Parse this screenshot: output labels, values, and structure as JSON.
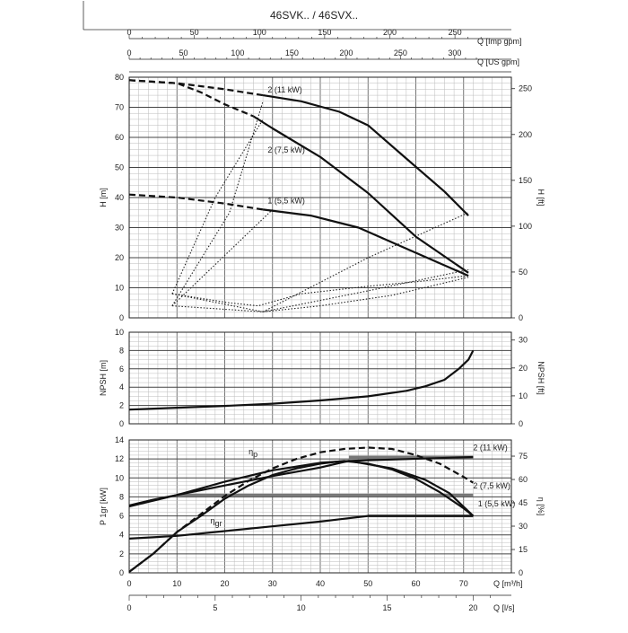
{
  "header": {
    "title": "46SVK.. / 46SVX.."
  },
  "chart_data": [
    {
      "type": "line",
      "name": "head",
      "x_unit": "m3/h",
      "xlim": [
        0,
        80
      ],
      "ylim": [
        0,
        80
      ],
      "ylabel": "H [m]",
      "ylabel_right": "H [ft]",
      "yticks": [
        0,
        10,
        20,
        30,
        40,
        50,
        60,
        70,
        80
      ],
      "yticks_right": [
        0,
        50,
        100,
        150,
        200,
        250
      ],
      "ft_per_m": 3.281,
      "top_axes": [
        {
          "label": "Q [Imp gpm]",
          "ticks": [
            0,
            50,
            100,
            150,
            200,
            250
          ],
          "per_m3h": 3.6662
        },
        {
          "label": "Q [US gpm]",
          "ticks": [
            0,
            50,
            100,
            150,
            200,
            250,
            300
          ],
          "per_m3h": 4.4029
        }
      ],
      "series": [
        {
          "name": "2 (11 kW)",
          "label_at": [
            29,
            75
          ],
          "dashed": [
            [
              0,
              79
            ],
            [
              10,
              78
            ],
            [
              20,
              76
            ],
            [
              28,
              74
            ]
          ],
          "solid": [
            [
              28,
              74
            ],
            [
              36,
              72
            ],
            [
              44,
              68.5
            ],
            [
              50,
              64
            ],
            [
              58,
              53
            ],
            [
              66,
              42
            ],
            [
              71,
              34
            ]
          ]
        },
        {
          "name": "2 (7,5 kW)",
          "label_at": [
            29,
            55
          ],
          "dashed": [
            [
              0,
              79
            ],
            [
              10,
              78
            ],
            [
              15,
              75
            ],
            [
              20,
              71
            ],
            [
              26,
              67
            ]
          ],
          "solid": [
            [
              26,
              67
            ],
            [
              30,
              63
            ],
            [
              40,
              53.5
            ],
            [
              50,
              41.5
            ],
            [
              60,
              27
            ],
            [
              71,
              15
            ]
          ]
        },
        {
          "name": "1 (5,5 kW)",
          "label_at": [
            29,
            38
          ],
          "dashed": [
            [
              0,
              41
            ],
            [
              10,
              40
            ],
            [
              20,
              38
            ],
            [
              28,
              36
            ]
          ],
          "solid": [
            [
              28,
              36
            ],
            [
              38,
              34
            ],
            [
              48,
              30
            ],
            [
              58,
              23
            ],
            [
              71,
              14
            ]
          ]
        }
      ],
      "efficiency_envelope": [
        [
          [
            9,
            8
          ],
          [
            21,
            5
          ],
          [
            27,
            4
          ],
          [
            36,
            8
          ],
          [
            50,
            10.5
          ],
          [
            60,
            12
          ],
          [
            71,
            14
          ]
        ],
        [
          [
            9,
            4
          ],
          [
            28,
            2
          ],
          [
            40,
            4
          ],
          [
            55,
            7.5
          ],
          [
            71,
            13.5
          ]
        ],
        [
          [
            9,
            8
          ],
          [
            28,
            2
          ],
          [
            50,
            9
          ],
          [
            71,
            16
          ]
        ],
        [
          [
            9,
            4
          ],
          [
            21,
            35
          ],
          [
            28,
            72
          ]
        ],
        [
          [
            9,
            8
          ],
          [
            18,
            40
          ],
          [
            28,
            66
          ]
        ],
        [
          [
            9,
            4
          ],
          [
            30,
            36
          ]
        ],
        [
          [
            28,
            2
          ],
          [
            50,
            20
          ],
          [
            71,
            35
          ]
        ]
      ]
    },
    {
      "type": "line",
      "name": "npsh",
      "xlim": [
        0,
        80
      ],
      "ylim": [
        0,
        10
      ],
      "ylabel": "NPSH [m]",
      "ylabel_right": "NPSH [ft]",
      "yticks": [
        0,
        2,
        4,
        6,
        8,
        10
      ],
      "yticks_right": [
        0,
        10,
        20,
        30
      ],
      "series": [
        {
          "name": "NPSH",
          "points": [
            [
              0,
              1.55
            ],
            [
              10,
              1.75
            ],
            [
              20,
              1.95
            ],
            [
              30,
              2.2
            ],
            [
              40,
              2.55
            ],
            [
              50,
              3.0
            ],
            [
              58,
              3.6
            ],
            [
              62,
              4.1
            ],
            [
              66,
              4.8
            ],
            [
              69,
              6.0
            ],
            [
              71,
              7.0
            ],
            [
              72,
              8.0
            ]
          ]
        }
      ]
    },
    {
      "type": "line",
      "name": "power",
      "xlim": [
        0,
        80
      ],
      "ylim": [
        0,
        14
      ],
      "ylabel": "P 1gr [kW]",
      "ylabel_right": "η [%]",
      "yticks": [
        0,
        2,
        4,
        6,
        8,
        10,
        12,
        14
      ],
      "yticks_right": [
        0,
        15,
        30,
        45,
        60,
        75
      ],
      "eta_per_kw": 6.1,
      "xlabel": "Q [m³/h]",
      "xticks": [
        0,
        10,
        20,
        30,
        40,
        50,
        60,
        70
      ],
      "bottom_axis": {
        "label": "Q [l/s]",
        "ticks": [
          0,
          5,
          10,
          15,
          20
        ],
        "per_m3h": 0.2778
      },
      "rated_power_lines": [
        {
          "name": "2 (11 kW)",
          "kw": 12.2,
          "from": 46,
          "label_at": [
            72,
            12.9
          ]
        },
        {
          "name": "2 (7,5 kW)",
          "kw": 8.2,
          "from": 10,
          "label_at": [
            72,
            8.9
          ]
        },
        {
          "name": "1 (5,5 kW)",
          "kw": 6.0,
          "from": 50,
          "label_at": [
            73,
            7.0
          ]
        }
      ],
      "series": [
        {
          "name": "",
          "role": "power-2-11kw",
          "points": [
            [
              0,
              7.0
            ],
            [
              10,
              8.2
            ],
            [
              20,
              9.2
            ],
            [
              30,
              10.2
            ],
            [
              40,
              11.1
            ],
            [
              46,
              11.8
            ],
            [
              72,
              12.2
            ]
          ]
        },
        {
          "name": "",
          "role": "power-2-7.5kw",
          "points": [
            [
              0,
              7.1
            ],
            [
              5,
              7.7
            ],
            [
              10,
              8.2
            ],
            [
              20,
              9.6
            ],
            [
              30,
              10.8
            ],
            [
              40,
              11.6
            ],
            [
              46,
              11.8
            ],
            [
              55,
              11.0
            ],
            [
              62,
              9.8
            ],
            [
              67,
              8.4
            ],
            [
              72,
              6.0
            ]
          ]
        },
        {
          "name": "",
          "role": "power-1-5.5kw",
          "points": [
            [
              0,
              3.6
            ],
            [
              10,
              3.9
            ],
            [
              20,
              4.4
            ],
            [
              30,
              4.9
            ],
            [
              40,
              5.4
            ],
            [
              50,
              6.0
            ],
            [
              72,
              6.0
            ]
          ]
        },
        {
          "name": "η",
          "sub": "p",
          "role": "efficiency-pump",
          "dashed": true,
          "label_at": [
            25,
            12.5
          ],
          "points": [
            [
              0,
              0.1
            ],
            [
              5,
              2.0
            ],
            [
              10,
              4.3
            ],
            [
              15,
              6.2
            ],
            [
              20,
              8.1
            ],
            [
              25,
              9.7
            ],
            [
              30,
              11.0
            ],
            [
              35,
              12.0
            ],
            [
              40,
              12.7
            ],
            [
              45,
              13.05
            ],
            [
              50,
              13.2
            ],
            [
              55,
              13.05
            ],
            [
              60,
              12.4
            ],
            [
              65,
              11.5
            ],
            [
              70,
              10.1
            ],
            [
              72,
              9.5
            ]
          ]
        },
        {
          "name": "η",
          "sub": "gr",
          "role": "efficiency-unit",
          "label_at": [
            17,
            5.2
          ],
          "points": [
            [
              0,
              0.1
            ],
            [
              5,
              2.0
            ],
            [
              10,
              4.3
            ],
            [
              15,
              6.0
            ],
            [
              20,
              7.8
            ],
            [
              25,
              9.2
            ],
            [
              30,
              10.3
            ],
            [
              35,
              11.0
            ],
            [
              40,
              11.5
            ],
            [
              45,
              11.8
            ],
            [
              50,
              11.5
            ],
            [
              55,
              10.9
            ],
            [
              60,
              9.9
            ],
            [
              65,
              8.5
            ],
            [
              70,
              6.8
            ],
            [
              72,
              6.0
            ]
          ]
        }
      ]
    }
  ]
}
